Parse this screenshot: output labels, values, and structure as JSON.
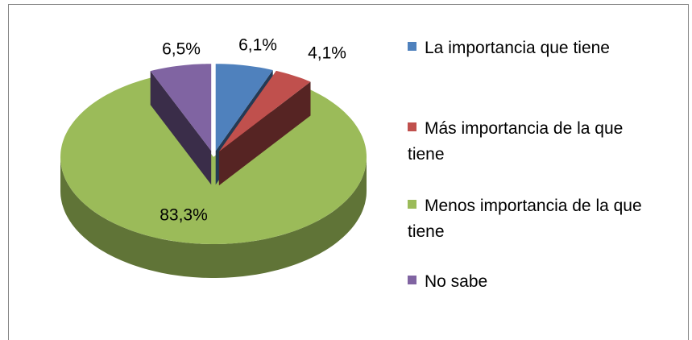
{
  "chart_data": {
    "type": "pie",
    "categories": [
      "La importancia que tiene",
      "Más importancia de la que tiene",
      "Menos importancia de la que tiene",
      "No sabe"
    ],
    "values": [
      6.1,
      4.1,
      83.3,
      6.5
    ],
    "value_labels": [
      "6,1%",
      "4,1%",
      "83,3%",
      "6,5%"
    ],
    "colors": [
      "#4f81bd",
      "#c0504d",
      "#9bbb59",
      "#8064a2"
    ],
    "legend": "right"
  }
}
